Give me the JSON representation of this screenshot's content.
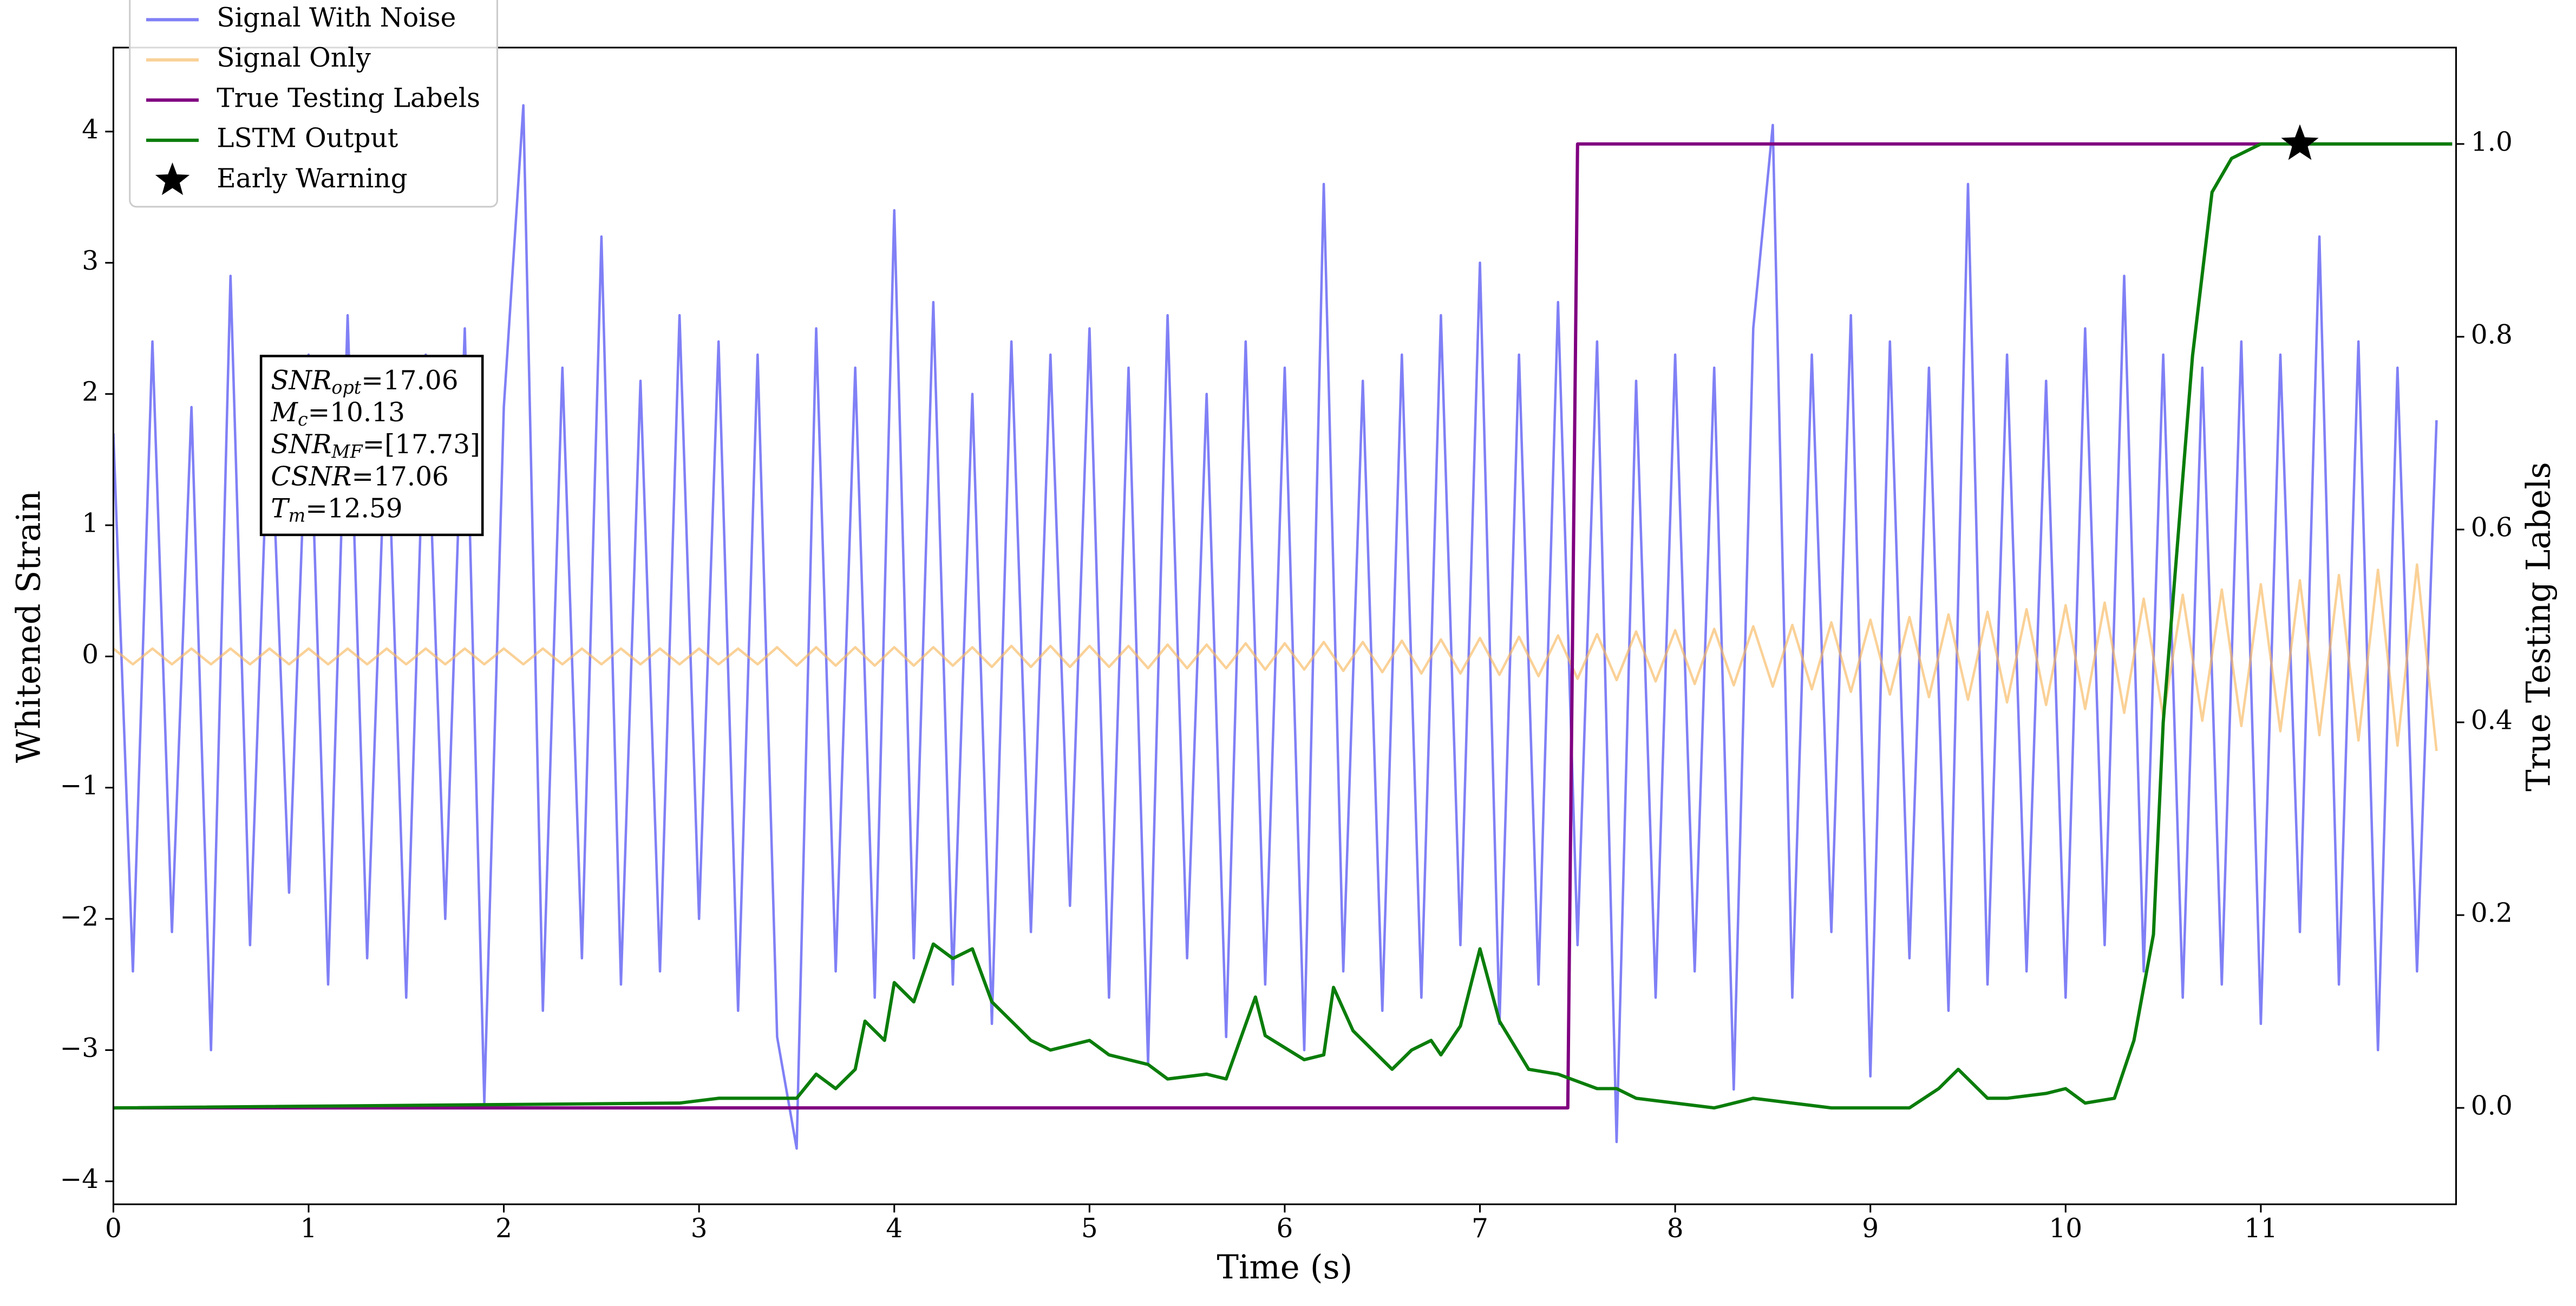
{
  "chart_data": {
    "type": "line",
    "xlabel": "Time (s)",
    "ylabel": "Whitened Strain",
    "y2label": "True Testing Labels",
    "xlim": [
      0,
      12
    ],
    "xticks": [
      0,
      1,
      2,
      3,
      4,
      5,
      6,
      7,
      8,
      9,
      10,
      11
    ],
    "ylim": [
      -4.175,
      4.64
    ],
    "yticks": [
      {
        "value": -4,
        "label": "−4"
      },
      {
        "value": -3,
        "label": "−3"
      },
      {
        "value": -2,
        "label": "−2"
      },
      {
        "value": -1,
        "label": "−1"
      },
      0,
      1,
      2,
      3,
      4
    ],
    "y2lim": [
      -0.1,
      1.1
    ],
    "y2ticks": [
      {
        "value": 0,
        "label": "0.0"
      },
      {
        "value": 0.2,
        "label": "0.2"
      },
      {
        "value": 0.4,
        "label": "0.4"
      },
      {
        "value": 0.6,
        "label": "0.6"
      },
      {
        "value": 0.8,
        "label": "0.8"
      },
      {
        "value": 1,
        "label": "1.0"
      }
    ],
    "legend": "upper left",
    "x": [
      0,
      0.1,
      0.2,
      0.3,
      0.4,
      0.5,
      0.6,
      0.7,
      0.8,
      0.9,
      1,
      1.1,
      1.2,
      1.3,
      1.4,
      1.5,
      1.6,
      1.7,
      1.8,
      1.9,
      2,
      2.1,
      2.2,
      2.3,
      2.4,
      2.5,
      2.6,
      2.7,
      2.8,
      2.9,
      3,
      3.1,
      3.2,
      3.3,
      3.4,
      3.5,
      3.6,
      3.7,
      3.8,
      3.9,
      4,
      4.1,
      4.2,
      4.3,
      4.4,
      4.5,
      4.6,
      4.7,
      4.8,
      4.9,
      5,
      5.1,
      5.2,
      5.3,
      5.4,
      5.5,
      5.6,
      5.7,
      5.8,
      5.9,
      6,
      6.1,
      6.2,
      6.3,
      6.4,
      6.5,
      6.6,
      6.7,
      6.8,
      6.9,
      7,
      7.1,
      7.2,
      7.3,
      7.4,
      7.5,
      7.6,
      7.7,
      7.8,
      7.9,
      8,
      8.1,
      8.2,
      8.3,
      8.4,
      8.5,
      8.6,
      8.7,
      8.8,
      8.9,
      9,
      9.1,
      9.2,
      9.3,
      9.4,
      9.5,
      9.6,
      9.7,
      9.8,
      9.9,
      10,
      10.1,
      10.2,
      10.3,
      10.4,
      10.5,
      10.6,
      10.7,
      10.8,
      10.9,
      11,
      11.1,
      11.2,
      11.3,
      11.4,
      11.5,
      11.6,
      11.7,
      11.8,
      11.9
    ],
    "series": [
      {
        "name": "Signal With Noise",
        "color": "#8080f6",
        "values": [
          1.7,
          -2.4,
          2.4,
          -2.1,
          1.9,
          -3.0,
          2.9,
          -2.2,
          2.1,
          -1.8,
          2.3,
          -2.5,
          2.6,
          -2.3,
          2.0,
          -2.6,
          2.3,
          -2.0,
          2.5,
          -3.4,
          1.9,
          4.2,
          -2.7,
          2.2,
          -2.3,
          3.2,
          -2.5,
          2.1,
          -2.4,
          2.6,
          -2.0,
          2.4,
          -2.7,
          2.3,
          -2.9,
          -3.75,
          2.5,
          -2.4,
          2.2,
          -2.6,
          3.4,
          -2.3,
          2.7,
          -2.5,
          2.0,
          -2.8,
          2.4,
          -2.1,
          2.3,
          -1.9,
          2.5,
          -2.6,
          2.2,
          -3.1,
          2.6,
          -2.3,
          2.0,
          -2.9,
          2.4,
          -2.5,
          2.2,
          -3.0,
          3.6,
          -2.4,
          2.1,
          -2.7,
          2.3,
          -2.6,
          2.6,
          -2.2,
          3.0,
          -2.8,
          2.3,
          -2.5,
          2.7,
          -2.2,
          2.4,
          -3.7,
          2.1,
          -2.6,
          2.3,
          -2.4,
          2.2,
          -3.3,
          2.5,
          4.05,
          -2.6,
          2.3,
          -2.1,
          2.6,
          -3.2,
          2.4,
          -2.3,
          2.2,
          -2.7,
          3.6,
          -2.5,
          2.3,
          -2.4,
          2.1,
          -2.6,
          2.5,
          -2.2,
          2.9,
          -2.4,
          2.3,
          -2.6,
          2.2,
          -2.5,
          2.4,
          -2.8,
          2.3,
          -2.1,
          3.2,
          -2.5,
          2.4,
          -3.0,
          2.2,
          -2.4,
          1.8
        ]
      },
      {
        "name": "Signal Only",
        "color": "#f7b860",
        "values": [
          0.06,
          -0.06,
          0.06,
          -0.06,
          0.06,
          -0.06,
          0.06,
          -0.06,
          0.06,
          -0.06,
          0.06,
          -0.06,
          0.06,
          -0.06,
          0.06,
          -0.06,
          0.06,
          -0.06,
          0.06,
          -0.06,
          0.06,
          -0.06,
          0.06,
          -0.06,
          0.06,
          -0.06,
          0.06,
          -0.06,
          0.06,
          -0.06,
          0.06,
          -0.06,
          0.06,
          -0.06,
          0.07,
          -0.07,
          0.07,
          -0.07,
          0.07,
          -0.07,
          0.07,
          -0.07,
          0.07,
          -0.07,
          0.07,
          -0.08,
          0.08,
          -0.08,
          0.08,
          -0.08,
          0.08,
          -0.08,
          0.08,
          -0.09,
          0.09,
          -0.09,
          0.09,
          -0.09,
          0.1,
          -0.1,
          0.1,
          -0.1,
          0.11,
          -0.11,
          0.11,
          -0.12,
          0.12,
          -0.13,
          0.13,
          -0.13,
          0.14,
          -0.14,
          0.15,
          -0.15,
          0.16,
          -0.17,
          0.17,
          -0.18,
          0.19,
          -0.19,
          0.2,
          -0.21,
          0.21,
          -0.22,
          0.23,
          -0.23,
          0.24,
          -0.25,
          0.26,
          -0.27,
          0.28,
          -0.29,
          0.3,
          -0.31,
          0.32,
          -0.33,
          0.34,
          -0.35,
          0.36,
          -0.37,
          0.39,
          -0.4,
          0.41,
          -0.43,
          0.44,
          -0.46,
          0.47,
          -0.49,
          0.51,
          -0.53,
          0.55,
          -0.57,
          0.58,
          -0.6,
          0.62,
          -0.64,
          0.66,
          -0.68,
          0.7,
          -0.72
        ]
      },
      {
        "name": "True Testing Labels",
        "color": "#800080",
        "axis": "y2",
        "x": [
          0,
          7.45,
          7.5,
          11.98
        ],
        "values": [
          0,
          0,
          1,
          1
        ]
      },
      {
        "name": "LSTM Output",
        "color": "#0a7d0a",
        "axis": "y2",
        "x": [
          0,
          2.9,
          3.1,
          3.5,
          3.6,
          3.7,
          3.8,
          3.85,
          3.95,
          4.0,
          4.1,
          4.2,
          4.3,
          4.4,
          4.5,
          4.6,
          4.7,
          4.8,
          5.0,
          5.1,
          5.3,
          5.4,
          5.6,
          5.7,
          5.85,
          5.9,
          6.1,
          6.2,
          6.25,
          6.35,
          6.55,
          6.65,
          6.75,
          6.8,
          6.9,
          7.0,
          7.1,
          7.25,
          7.4,
          7.6,
          7.7,
          7.8,
          8.2,
          8.4,
          8.8,
          9.2,
          9.35,
          9.45,
          9.6,
          9.7,
          9.9,
          10.0,
          10.1,
          10.25,
          10.35,
          10.45,
          10.5,
          10.65,
          10.75,
          10.85,
          11.0,
          11.98
        ],
        "values": [
          0,
          0.005,
          0.01,
          0.01,
          0.035,
          0.02,
          0.04,
          0.09,
          0.07,
          0.13,
          0.11,
          0.17,
          0.155,
          0.165,
          0.11,
          0.09,
          0.07,
          0.06,
          0.07,
          0.055,
          0.045,
          0.03,
          0.035,
          0.03,
          0.115,
          0.075,
          0.05,
          0.055,
          0.125,
          0.08,
          0.04,
          0.06,
          0.07,
          0.055,
          0.085,
          0.165,
          0.09,
          0.04,
          0.035,
          0.02,
          0.02,
          0.01,
          0,
          0.01,
          0,
          0,
          0.02,
          0.04,
          0.01,
          0.01,
          0.015,
          0.02,
          0.005,
          0.01,
          0.07,
          0.18,
          0.4,
          0.78,
          0.95,
          0.985,
          1.0,
          1.0
        ]
      },
      {
        "name": "Early Warning",
        "color": "#000000",
        "axis": "y2",
        "kind": "scatter",
        "marker": "star",
        "x": [
          11.2
        ],
        "values": [
          1.0
        ]
      }
    ],
    "annotation": [
      {
        "var": "SNR",
        "sub": "opt",
        "text": "=17.06"
      },
      {
        "var": "M",
        "sub": "c",
        "text": "=10.13"
      },
      {
        "var": "SNR",
        "sub": "MF",
        "text": "=[17.73]"
      },
      {
        "var": "CSNR",
        "text": "=17.06"
      },
      {
        "var": "T",
        "sub": "m",
        "text": "=12.59"
      }
    ]
  }
}
